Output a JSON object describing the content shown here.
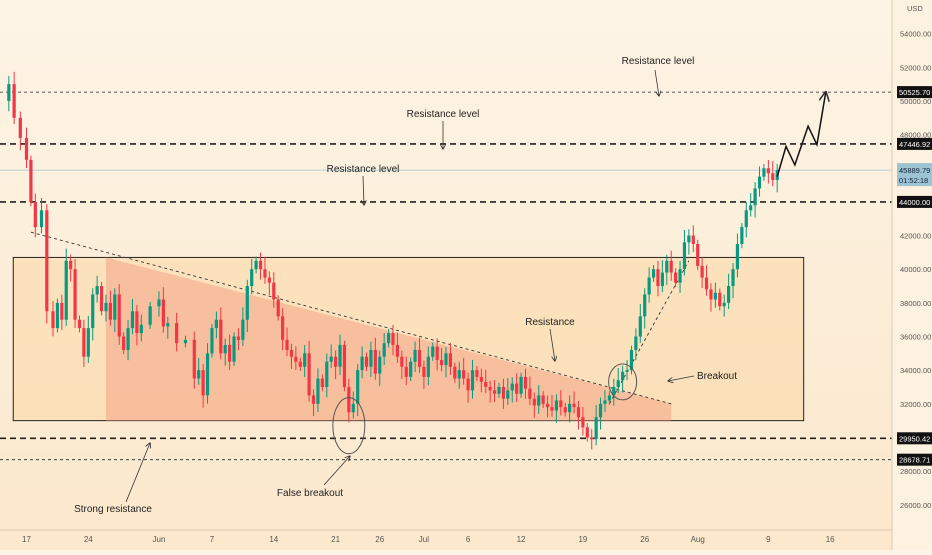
{
  "chart_data": {
    "type": "candlestick",
    "title": "",
    "xlabel": "",
    "ylabel": "",
    "currency_label": "USD",
    "ylim": [
      24500,
      56000
    ],
    "x_ticks": [
      {
        "day": 17,
        "label": "17"
      },
      {
        "day": 24,
        "label": "24"
      },
      {
        "day": 32,
        "label": "Jun"
      },
      {
        "day": 38,
        "label": "7"
      },
      {
        "day": 45,
        "label": "14"
      },
      {
        "day": 52,
        "label": "21"
      },
      {
        "day": 57,
        "label": "26"
      },
      {
        "day": 62,
        "label": "Jul"
      },
      {
        "day": 67,
        "label": "6"
      },
      {
        "day": 73,
        "label": "12"
      },
      {
        "day": 80,
        "label": "19"
      },
      {
        "day": 87,
        "label": "26"
      },
      {
        "day": 93,
        "label": "Aug"
      },
      {
        "day": 101,
        "label": "9"
      },
      {
        "day": 108,
        "label": "16"
      }
    ],
    "x_range_days": [
      14,
      115
    ],
    "y_ticks": [
      26000,
      28000,
      30000,
      32000,
      34000,
      36000,
      38000,
      40000,
      42000,
      44000,
      46000,
      48000,
      50000,
      52000,
      54000
    ],
    "price_points": [
      [
        14,
        50000
      ],
      [
        15,
        51000
      ],
      [
        15.6,
        49000
      ],
      [
        16.3,
        47800
      ],
      [
        17,
        46500
      ],
      [
        17.5,
        44000
      ],
      [
        18,
        42500
      ],
      [
        18.7,
        43500
      ],
      [
        19.3,
        37500
      ],
      [
        20,
        36500
      ],
      [
        20.5,
        38000
      ],
      [
        21,
        37000
      ],
      [
        21.5,
        40500
      ],
      [
        22,
        40000
      ],
      [
        22.5,
        37000
      ],
      [
        23,
        36500
      ],
      [
        23.5,
        34800
      ],
      [
        24,
        36500
      ],
      [
        24.5,
        38500
      ],
      [
        25,
        39000
      ],
      [
        25.5,
        37500
      ],
      [
        26,
        38000
      ],
      [
        26.5,
        37000
      ],
      [
        27,
        38500
      ],
      [
        27.5,
        36000
      ],
      [
        28,
        35200
      ],
      [
        28.5,
        36500
      ],
      [
        29,
        37500
      ],
      [
        29.5,
        36200
      ],
      [
        30,
        36700
      ],
      [
        31,
        37800
      ],
      [
        32,
        38200
      ],
      [
        32.5,
        36600
      ],
      [
        33,
        36800
      ],
      [
        34,
        35600
      ],
      [
        35,
        35800
      ],
      [
        36,
        33500
      ],
      [
        36.5,
        34000
      ],
      [
        37,
        32500
      ],
      [
        37.5,
        35000
      ],
      [
        38,
        36500
      ],
      [
        38.5,
        37000
      ],
      [
        39,
        35000
      ],
      [
        39.5,
        35500
      ],
      [
        40,
        34500
      ],
      [
        40.5,
        36000
      ],
      [
        41,
        35800
      ],
      [
        41.5,
        37000
      ],
      [
        42,
        39000
      ],
      [
        42.5,
        40000
      ],
      [
        43,
        40500
      ],
      [
        43.5,
        40000
      ],
      [
        44,
        39500
      ],
      [
        44.5,
        39200
      ],
      [
        45,
        38200
      ],
      [
        45.5,
        37200
      ],
      [
        46,
        35800
      ],
      [
        46.5,
        35200
      ],
      [
        47,
        34800
      ],
      [
        47.5,
        34500
      ],
      [
        48,
        34200
      ],
      [
        48.5,
        35000
      ],
      [
        49,
        32500
      ],
      [
        49.5,
        32000
      ],
      [
        50,
        33500
      ],
      [
        50.5,
        33000
      ],
      [
        51,
        34500
      ],
      [
        51.5,
        34800
      ],
      [
        52,
        34200
      ],
      [
        52.5,
        35500
      ],
      [
        53,
        33000
      ],
      [
        53.5,
        31500
      ],
      [
        54,
        32000
      ],
      [
        54.5,
        34000
      ],
      [
        55,
        34800
      ],
      [
        55.5,
        34200
      ],
      [
        56,
        35200
      ],
      [
        56.5,
        33800
      ],
      [
        57,
        34800
      ],
      [
        57.5,
        35600
      ],
      [
        58,
        36200
      ],
      [
        58.5,
        35500
      ],
      [
        59,
        34800
      ],
      [
        59.5,
        34200
      ],
      [
        60,
        33600
      ],
      [
        60.5,
        34500
      ],
      [
        61,
        35200
      ],
      [
        61.5,
        34200
      ],
      [
        62,
        33600
      ],
      [
        62.5,
        34800
      ],
      [
        63,
        35400
      ],
      [
        63.5,
        34600
      ],
      [
        64,
        34300
      ],
      [
        64.5,
        35000
      ],
      [
        65,
        34200
      ],
      [
        65.5,
        33500
      ],
      [
        66,
        34000
      ],
      [
        66.5,
        33500
      ],
      [
        67,
        32800
      ],
      [
        67.5,
        34000
      ],
      [
        68,
        33600
      ],
      [
        68.5,
        33300
      ],
      [
        69,
        33000
      ],
      [
        69.5,
        32800
      ],
      [
        70,
        32600
      ],
      [
        70.5,
        33000
      ],
      [
        71,
        32300
      ],
      [
        71.5,
        32800
      ],
      [
        72,
        33200
      ],
      [
        72.5,
        32600
      ],
      [
        73,
        33600
      ],
      [
        73.5,
        32900
      ],
      [
        74,
        32300
      ],
      [
        74.5,
        31900
      ],
      [
        75,
        32500
      ],
      [
        75.5,
        32000
      ],
      [
        76,
        31800
      ],
      [
        76.5,
        31600
      ],
      [
        77,
        32200
      ],
      [
        77.5,
        31800
      ],
      [
        78,
        31500
      ],
      [
        78.5,
        32000
      ],
      [
        79,
        31800
      ],
      [
        79.5,
        31200
      ],
      [
        80,
        30600
      ],
      [
        80.5,
        30000
      ],
      [
        81,
        29900
      ],
      [
        81.5,
        31200
      ],
      [
        82,
        32000
      ],
      [
        82.5,
        32200
      ],
      [
        83,
        32500
      ],
      [
        83.5,
        33000
      ],
      [
        84,
        33400
      ],
      [
        84.5,
        33900
      ],
      [
        85,
        34000
      ],
      [
        85.5,
        35200
      ],
      [
        86,
        36000
      ],
      [
        86.5,
        37200
      ],
      [
        87,
        38500
      ],
      [
        87.5,
        39500
      ],
      [
        88,
        40000
      ],
      [
        88.5,
        39000
      ],
      [
        89,
        39800
      ],
      [
        89.5,
        40500
      ],
      [
        90,
        39800
      ],
      [
        90.5,
        39200
      ],
      [
        91,
        40000
      ],
      [
        91.5,
        41600
      ],
      [
        92,
        42000
      ],
      [
        92.5,
        41500
      ],
      [
        93,
        40200
      ],
      [
        93.5,
        39500
      ],
      [
        94,
        38800
      ],
      [
        94.5,
        38200
      ],
      [
        95,
        38600
      ],
      [
        95.5,
        37800
      ],
      [
        96,
        38000
      ],
      [
        96.5,
        39000
      ],
      [
        97,
        40000
      ],
      [
        97.5,
        41500
      ],
      [
        98,
        42500
      ],
      [
        98.5,
        43500
      ],
      [
        99,
        43800
      ],
      [
        99.5,
        44800
      ],
      [
        100,
        45500
      ],
      [
        100.5,
        46000
      ],
      [
        101,
        45700
      ],
      [
        101.5,
        45300
      ],
      [
        102,
        45889
      ]
    ],
    "levels": [
      {
        "price": 50525.7,
        "label": "50525.70",
        "style": "thin"
      },
      {
        "price": 47446.92,
        "label": "47446.92",
        "style": "bold"
      },
      {
        "price": 44000.0,
        "label": "44000.00",
        "style": "bold"
      },
      {
        "price": 29950.42,
        "label": "29950.42",
        "style": "bold"
      },
      {
        "price": 28678.71,
        "label": "28678.71",
        "style": "thin"
      }
    ],
    "current_price": {
      "price": 45889.79,
      "label": "45889.79",
      "countdown": "01:52:18"
    },
    "range_box": {
      "x0": 15.5,
      "x1": 105,
      "y_low": 31000,
      "y_high": 40700
    },
    "triangle": {
      "p1": [
        26,
        40700
      ],
      "p2": [
        90,
        32000
      ],
      "base": 31000
    },
    "descending_trendline": {
      "p1": [
        17.5,
        42200
      ],
      "p2": [
        90,
        32000
      ]
    },
    "rising_trendline": {
      "p1": [
        83,
        32000
      ],
      "p2": [
        92,
        40500
      ]
    },
    "projection": [
      [
        102,
        45500
      ],
      [
        103,
        47300
      ],
      [
        104,
        46200
      ],
      [
        105.5,
        48500
      ],
      [
        106.5,
        47400
      ],
      [
        107.5,
        50525
      ]
    ],
    "circles": [
      {
        "cx": 53.5,
        "cy": 30700
      },
      {
        "cx": 84.5,
        "cy": 33300
      }
    ],
    "annotations": {
      "resistance_level_1": "Resistance level",
      "resistance_level_2": "Resistance level",
      "resistance_level_3": "Resistance level",
      "resistance": "Resistance",
      "breakout": "Breakout",
      "false_breakout": "False breakout",
      "strong_resistance": "Strong resistance"
    }
  }
}
